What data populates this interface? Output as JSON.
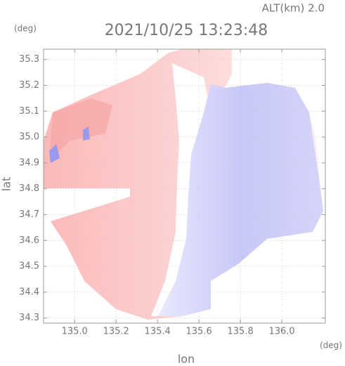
{
  "chart_data": {
    "type": "map",
    "title": "2021/10/25 13:23:48",
    "annotation": "ALT(km) 2.0",
    "xlabel": "lon",
    "ylabel": "lat",
    "xunit": "(deg)",
    "yunit": "(deg)",
    "xlim": [
      134.85,
      136.21
    ],
    "ylim": [
      34.28,
      35.34
    ],
    "xticks": [
      {
        "value": 135,
        "label": "135.0"
      },
      135.2,
      135.4,
      135.6,
      135.8,
      {
        "value": 136,
        "label": "136.0"
      }
    ],
    "yticks": [
      {
        "value": 34.3,
        "label": "34.3"
      },
      34.4,
      34.5,
      34.6,
      34.7,
      34.8,
      34.9,
      {
        "value": 35,
        "label": "35.0"
      },
      35.1,
      35.2,
      35.3
    ],
    "grid": true
  }
}
